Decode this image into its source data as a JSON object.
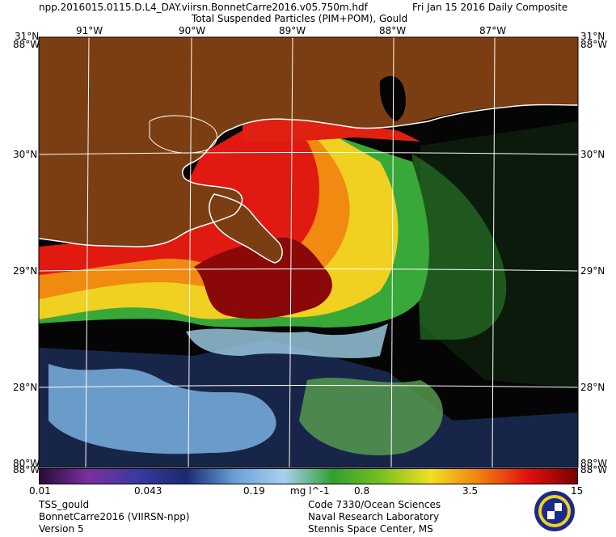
{
  "header": {
    "filename": "npp.2016015.0115.D.L4_DAY.viirsn.BonnetCarre2016.v05.750m.hdf",
    "date": "Fri Jan 15 2016 Daily Composite",
    "product": "Total Suspended Particles (PIM+POM), Gould"
  },
  "map": {
    "lon_ticks": [
      "91°W",
      "90°W",
      "89°W",
      "88°W",
      "87°W"
    ],
    "lat_ticks": [
      "30°N",
      "29°N",
      "28°N"
    ],
    "corner_tl_top": "31°N",
    "corner_tl_side": "88°W",
    "corner_tr_top": "31°N",
    "corner_tr_side": "88°W",
    "corner_bl_top": "80°W",
    "corner_bl_side": "88°W",
    "corner_br_top": "88°W",
    "corner_br_side": "88°W"
  },
  "colorbar": {
    "labels": [
      "0.01",
      "0.043",
      "0.19",
      "0.8",
      "3.5",
      "15"
    ],
    "unit": "mg l^-1",
    "colors": [
      "#2a0a3a",
      "#7b2fa0",
      "#3a3aa0",
      "#1a2a70",
      "#6aa0d8",
      "#a8d0f0",
      "#30a030",
      "#7ac020",
      "#f0e020",
      "#f08010",
      "#e01010",
      "#7a0000"
    ]
  },
  "footer": {
    "left": [
      "TSS_gould",
      "BonnetCarre2016 (VIIRSN-npp)",
      "Version 5"
    ],
    "right": [
      "Code 7330/Ocean Sciences",
      "Naval Research Laboratory",
      "Stennis Space Center, MS"
    ]
  }
}
